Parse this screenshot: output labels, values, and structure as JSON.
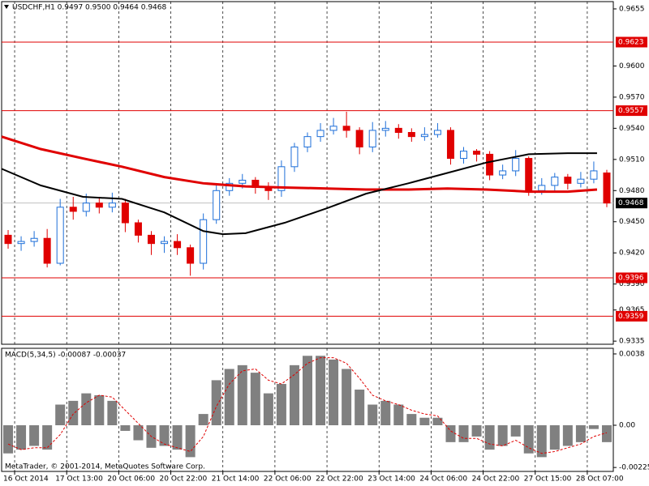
{
  "chart_data": [
    {
      "type": "candlestick",
      "title": "USDCHF,H1  0.9497 0.9500 0.9464 0.9468",
      "x": [
        2,
        6,
        10,
        14,
        18,
        22,
        26,
        30,
        34,
        38,
        42,
        46,
        50,
        54,
        58,
        62,
        66,
        70,
        74,
        78,
        82,
        86,
        90,
        94,
        98,
        102,
        106,
        110,
        114,
        118,
        122,
        126,
        130,
        134,
        138,
        142,
        146,
        150,
        154,
        158,
        162,
        166,
        170,
        174,
        178,
        182,
        186
      ],
      "open": [
        0.9437,
        0.9429,
        0.9431,
        0.9434,
        0.941,
        0.9464,
        0.946,
        0.9468,
        0.9464,
        0.9468,
        0.9449,
        0.9437,
        0.9429,
        0.9431,
        0.9425,
        0.941,
        0.9452,
        0.948,
        0.9487,
        0.949,
        0.9483,
        0.948,
        0.9503,
        0.9522,
        0.9532,
        0.9538,
        0.9542,
        0.9538,
        0.9522,
        0.9538,
        0.954,
        0.9536,
        0.9532,
        0.9534,
        0.9538,
        0.9511,
        0.9518,
        0.9515,
        0.9495,
        0.9499,
        0.9511,
        0.948,
        0.9485,
        0.9493,
        0.9487,
        0.9491,
        0.9497
      ],
      "high": [
        0.9442,
        0.9436,
        0.9441,
        0.9443,
        0.9472,
        0.9474,
        0.9477,
        0.9474,
        0.9478,
        0.9472,
        0.9452,
        0.9441,
        0.9436,
        0.9438,
        0.9428,
        0.9458,
        0.9486,
        0.9492,
        0.9496,
        0.9493,
        0.9488,
        0.9509,
        0.9526,
        0.9536,
        0.9545,
        0.955,
        0.9556,
        0.9541,
        0.9546,
        0.9547,
        0.9544,
        0.954,
        0.9541,
        0.9545,
        0.9541,
        0.9522,
        0.952,
        0.9518,
        0.9505,
        0.9519,
        0.9513,
        0.9492,
        0.9497,
        0.9496,
        0.9498,
        0.9508,
        0.95
      ],
      "low": [
        0.9424,
        0.9422,
        0.9426,
        0.9406,
        0.9408,
        0.9452,
        0.9455,
        0.9458,
        0.9459,
        0.944,
        0.943,
        0.9418,
        0.942,
        0.9418,
        0.9398,
        0.9404,
        0.9448,
        0.9475,
        0.9482,
        0.9477,
        0.9471,
        0.9474,
        0.9498,
        0.9517,
        0.9527,
        0.9534,
        0.9531,
        0.9515,
        0.9517,
        0.9532,
        0.953,
        0.9527,
        0.9528,
        0.9531,
        0.9505,
        0.9506,
        0.9508,
        0.949,
        0.9491,
        0.9494,
        0.9475,
        0.9476,
        0.948,
        0.9481,
        0.9483,
        0.9487,
        0.9464
      ],
      "close": [
        0.9429,
        0.9431,
        0.9434,
        0.941,
        0.9464,
        0.946,
        0.9468,
        0.9464,
        0.9468,
        0.9449,
        0.9437,
        0.9429,
        0.9431,
        0.9425,
        0.941,
        0.9452,
        0.948,
        0.9487,
        0.949,
        0.9483,
        0.948,
        0.9503,
        0.9522,
        0.9532,
        0.9538,
        0.9542,
        0.9538,
        0.9522,
        0.9538,
        0.954,
        0.9536,
        0.9532,
        0.9534,
        0.9538,
        0.9511,
        0.9518,
        0.9515,
        0.9495,
        0.9499,
        0.9511,
        0.948,
        0.9485,
        0.9493,
        0.9487,
        0.9491,
        0.9499,
        0.9468
      ],
      "up_color": "#1e6fd9",
      "down_color": "#e00000",
      "lines": [
        {
          "color": "#e00000",
          "x": [
            0,
            12,
            25,
            37,
            50,
            62,
            75,
            87,
            100,
            112,
            125,
            137,
            149,
            162,
            174,
            183
          ],
          "values": [
            0.9532,
            0.952,
            0.9511,
            0.9503,
            0.9493,
            0.9487,
            0.9484,
            0.9483,
            0.9482,
            0.9481,
            0.9481,
            0.9482,
            0.9481,
            0.9479,
            0.9479,
            0.9481
          ]
        },
        {
          "color": "#000000",
          "x": [
            0,
            12,
            25,
            37,
            50,
            62,
            68,
            75,
            87,
            100,
            112,
            125,
            137,
            149,
            162,
            174,
            183
          ],
          "values": [
            0.9501,
            0.9485,
            0.9474,
            0.9472,
            0.9459,
            0.9441,
            0.9438,
            0.9439,
            0.9449,
            0.9463,
            0.9477,
            0.9487,
            0.9497,
            0.9507,
            0.9515,
            0.9516,
            0.9516
          ]
        }
      ],
      "levels": [
        {
          "value": 0.9623,
          "label": "0.9623"
        },
        {
          "value": 0.9557,
          "label": "0.9557"
        },
        {
          "value": 0.9396,
          "label": "0.9396"
        },
        {
          "value": 0.9359,
          "label": "0.9359"
        }
      ],
      "level_color": "#e00000",
      "current_price": {
        "value": 0.9468,
        "label": "0.9468"
      },
      "xlim": [
        0,
        188
      ],
      "xticks": [
        {
          "value": 4,
          "label": "16 Oct 2014"
        },
        {
          "value": 20,
          "label": "17 Oct 13:00"
        },
        {
          "value": 36,
          "label": "20 Oct 06:00"
        },
        {
          "value": 52,
          "label": "20 Oct 22:00"
        },
        {
          "value": 68,
          "label": "21 Oct 14:00"
        },
        {
          "value": 84,
          "label": "22 Oct 06:00"
        },
        {
          "value": 100,
          "label": "22 Oct 22:00"
        },
        {
          "value": 116,
          "label": "23 Oct 14:00"
        },
        {
          "value": 132,
          "label": "24 Oct 06:00"
        },
        {
          "value": 148,
          "label": "24 Oct 22:00"
        },
        {
          "value": 164,
          "label": "27 Oct 15:00"
        },
        {
          "value": 180,
          "label": "28 Oct 07:00"
        }
      ],
      "ylim": [
        0.9332,
        0.9662
      ],
      "yticks": [
        0.9655,
        {
          "value": 0.96,
          "label": "0.9600"
        },
        {
          "value": 0.957,
          "label": "0.9570"
        },
        {
          "value": 0.954,
          "label": "0.9540"
        },
        {
          "value": 0.951,
          "label": "0.9510"
        },
        {
          "value": 0.948,
          "label": "0.9480"
        },
        {
          "value": 0.945,
          "label": "0.9450"
        },
        {
          "value": 0.942,
          "label": "0.9420"
        },
        {
          "value": 0.939,
          "label": "0.9390"
        },
        0.9365,
        0.9335
      ],
      "grid": true
    },
    {
      "type": "macd",
      "title": "MACD(5,34,5) -0.00087 -0.00037",
      "x": [
        2,
        6,
        10,
        14,
        18,
        22,
        26,
        30,
        34,
        38,
        42,
        46,
        50,
        54,
        58,
        62,
        66,
        70,
        74,
        78,
        82,
        86,
        90,
        94,
        98,
        102,
        106,
        110,
        114,
        118,
        122,
        126,
        130,
        134,
        138,
        142,
        146,
        150,
        154,
        158,
        162,
        166,
        170,
        174,
        178,
        182,
        186
      ],
      "values": [
        -0.0015,
        -0.0013,
        -0.0011,
        -0.0013,
        0.0011,
        0.0013,
        0.0017,
        0.0016,
        0.0013,
        -0.0003,
        -0.0008,
        -0.0012,
        -0.0011,
        -0.0013,
        -0.0017,
        0.0006,
        0.0024,
        0.003,
        0.0032,
        0.0028,
        0.0017,
        0.0022,
        0.0032,
        0.0037,
        0.0037,
        0.0035,
        0.003,
        0.0019,
        0.0011,
        0.0013,
        0.0011,
        0.0006,
        0.0004,
        0.0004,
        -0.0009,
        -0.0009,
        -0.0006,
        -0.0013,
        -0.0011,
        -0.0006,
        -0.0015,
        -0.0017,
        -0.0013,
        -0.0011,
        -0.0009,
        -0.0002,
        -0.0009
      ],
      "signal": [
        -0.001,
        -0.0013,
        -0.0012,
        -0.0012,
        -0.0005,
        0.0006,
        0.0012,
        0.0016,
        0.0015,
        0.0008,
        0.0001,
        -0.0006,
        -0.001,
        -0.0012,
        -0.0014,
        -0.0006,
        0.001,
        0.0022,
        0.0029,
        0.003,
        0.0024,
        0.0022,
        0.0027,
        0.0033,
        0.0036,
        0.0036,
        0.0033,
        0.0025,
        0.0016,
        0.0013,
        0.0011,
        0.0008,
        0.0006,
        0.0005,
        -0.0003,
        -0.0007,
        -0.0007,
        -0.001,
        -0.0011,
        -0.0008,
        -0.0012,
        -0.0015,
        -0.0014,
        -0.0012,
        -0.001,
        -0.0006,
        -0.0004
      ],
      "color": "#808080",
      "signal_color": "#e00000",
      "ylim": [
        -0.00246,
        0.0041
      ],
      "yticks": [
        0.0038,
        {
          "value": 0,
          "label": "0.00"
        },
        -0.00225
      ]
    }
  ],
  "watermark": "MetaTrader, © 2001-2014, MetaQuotes Software Corp."
}
